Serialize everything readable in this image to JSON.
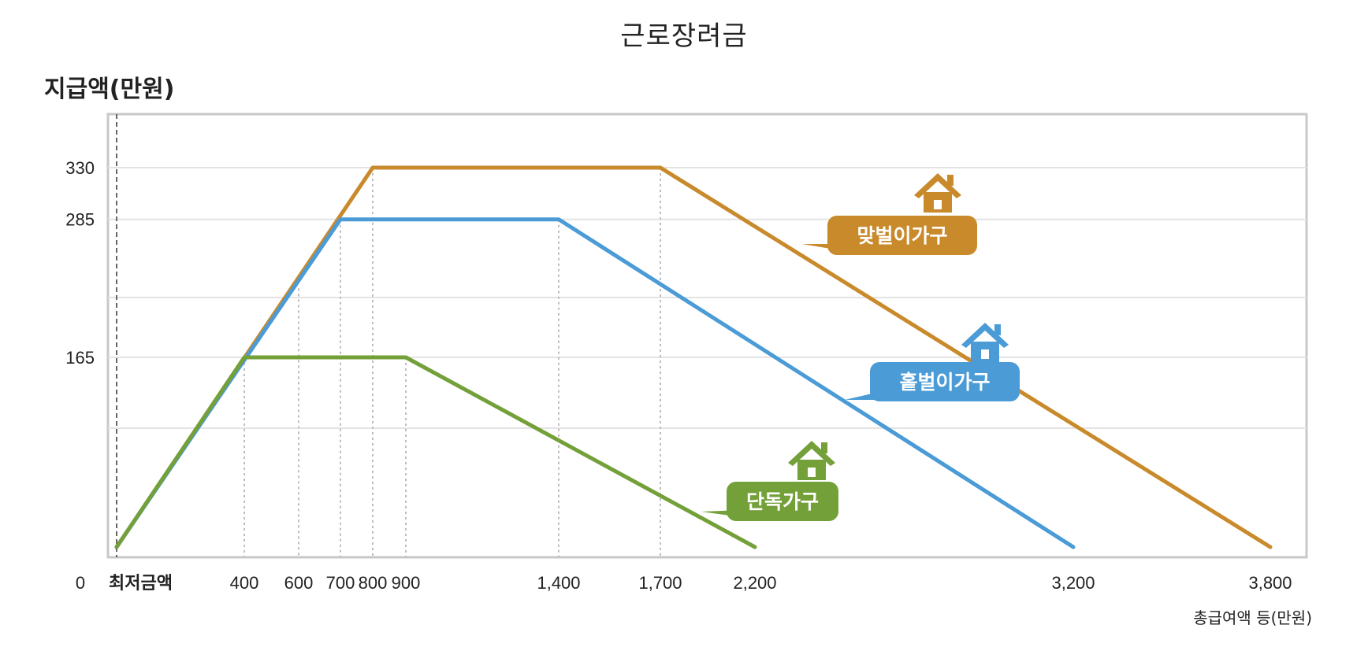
{
  "page": {
    "title": "근로장려금",
    "y_title": "지급액(만원)"
  },
  "chart_data": {
    "type": "line",
    "title": "근로장려금",
    "ylabel": "지급액(만원)",
    "xlabel": "총급여액 등(만원)",
    "x_ticks": [
      "0",
      "최저금액",
      "400",
      "600",
      "700",
      "800",
      "900",
      "1,400",
      "1,700",
      "2,200",
      "3,200",
      "3,800"
    ],
    "y_ticks": [
      "330",
      "285",
      "165"
    ],
    "ylim": [
      0,
      330
    ],
    "grid": "horizontal",
    "series": [
      {
        "name": "맞벌이가구",
        "color": "#C98A2B",
        "points": [
          [
            0,
            0
          ],
          [
            800,
            330
          ],
          [
            1700,
            330
          ],
          [
            3800,
            0
          ]
        ]
      },
      {
        "name": "홑벌이가구",
        "color": "#4A9BD6",
        "points": [
          [
            0,
            0
          ],
          [
            700,
            285
          ],
          [
            1400,
            285
          ],
          [
            3200,
            0
          ]
        ]
      },
      {
        "name": "단독가구",
        "color": "#74A03A",
        "points": [
          [
            0,
            0
          ],
          [
            400,
            165
          ],
          [
            900,
            165
          ],
          [
            2200,
            0
          ]
        ]
      }
    ],
    "guide_lines_x": [
      400,
      600,
      700,
      800,
      900,
      1400,
      1700
    ]
  }
}
